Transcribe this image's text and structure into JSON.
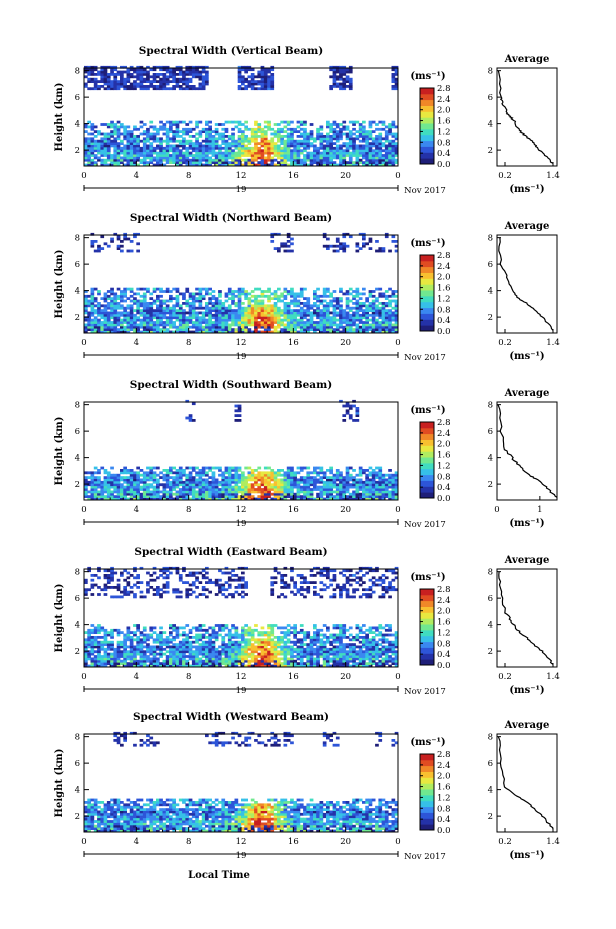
{
  "figure": {
    "xlabel_bottom": "Local Time",
    "colorbar_unit": "(ms⁻¹)",
    "colorbar_ticks": [
      "0.0",
      "0.4",
      "0.8",
      "1.2",
      "1.6",
      "2.0",
      "2.4",
      "2.8"
    ],
    "day_label": "19",
    "month_label": "Nov 2017",
    "avg_title": "Average",
    "avg_xlabel": "(ms⁻¹)",
    "colormap": [
      "#1e1e78",
      "#2432a8",
      "#2d55d8",
      "#3a88f0",
      "#36c0e8",
      "#40dcc0",
      "#70e890",
      "#b0ec60",
      "#e8e840",
      "#f8c030",
      "#f08828",
      "#e04c22",
      "#c82020"
    ]
  },
  "chart_data": [
    {
      "type": "heatmap",
      "title": "Spectral Width (Vertical Beam)",
      "ylabel": "Height (km)",
      "x_ticks": [
        "0",
        "4",
        "8",
        "12",
        "16",
        "20",
        "0"
      ],
      "xlim": [
        0,
        24
      ],
      "y_ticks": [
        "2",
        "4",
        "6",
        "8"
      ],
      "ylim": [
        0.8,
        8.2
      ],
      "colorbar_range": [
        0.0,
        2.8
      ],
      "average_profile": {
        "x_ticks": [
          "0.2",
          "1.4"
        ],
        "xlim": [
          0.0,
          1.5
        ],
        "y_ticks": [
          "2",
          "4",
          "6",
          "8"
        ],
        "ylim": [
          0.8,
          8.2
        ],
        "points": [
          [
            0.05,
            8.0
          ],
          [
            0.08,
            6.0
          ],
          [
            0.15,
            5.5
          ],
          [
            0.25,
            4.8
          ],
          [
            0.35,
            4.5
          ],
          [
            0.45,
            4.1
          ],
          [
            0.55,
            3.5
          ],
          [
            0.7,
            3.1
          ],
          [
            0.9,
            2.6
          ],
          [
            1.0,
            2.2
          ],
          [
            1.2,
            1.6
          ],
          [
            1.4,
            1.0
          ]
        ]
      }
    },
    {
      "type": "heatmap",
      "title": "Spectral Width (Northward Beam)",
      "ylabel": "Height (km)",
      "x_ticks": [
        "0",
        "4",
        "8",
        "12",
        "16",
        "20",
        "0"
      ],
      "xlim": [
        0,
        24
      ],
      "y_ticks": [
        "2",
        "4",
        "6",
        "8"
      ],
      "ylim": [
        0.8,
        8.2
      ],
      "colorbar_range": [
        0.0,
        2.8
      ],
      "average_profile": {
        "x_ticks": [
          "0.2",
          "1.4"
        ],
        "xlim": [
          0.0,
          1.5
        ],
        "y_ticks": [
          "2",
          "4",
          "6",
          "8"
        ],
        "ylim": [
          0.8,
          8.2
        ],
        "points": [
          [
            0.05,
            8.0
          ],
          [
            0.1,
            6.0
          ],
          [
            0.25,
            5.0
          ],
          [
            0.4,
            4.0
          ],
          [
            0.55,
            3.4
          ],
          [
            0.8,
            2.9
          ],
          [
            1.0,
            2.4
          ],
          [
            1.2,
            1.8
          ],
          [
            1.4,
            1.0
          ]
        ]
      }
    },
    {
      "type": "heatmap",
      "title": "Spectral Width (Southward Beam)",
      "ylabel": "Height (km)",
      "x_ticks": [
        "0",
        "4",
        "8",
        "12",
        "16",
        "20",
        "0"
      ],
      "xlim": [
        0,
        24
      ],
      "y_ticks": [
        "2",
        "4",
        "6",
        "8"
      ],
      "ylim": [
        0.8,
        8.2
      ],
      "colorbar_range": [
        0.0,
        2.8
      ],
      "average_profile": {
        "x_ticks": [
          "0",
          "1"
        ],
        "xlim": [
          0.0,
          1.4
        ],
        "y_ticks": [
          "2",
          "4",
          "6",
          "8"
        ],
        "ylim": [
          0.8,
          8.2
        ],
        "points": [
          [
            0.05,
            8.0
          ],
          [
            0.1,
            6.0
          ],
          [
            0.2,
            4.6
          ],
          [
            0.35,
            4.0
          ],
          [
            0.55,
            3.3
          ],
          [
            0.8,
            2.6
          ],
          [
            1.0,
            2.2
          ],
          [
            1.2,
            1.6
          ],
          [
            1.4,
            1.0
          ]
        ]
      }
    },
    {
      "type": "heatmap",
      "title": "Spectral Width (Eastward Beam)",
      "ylabel": "Height (km)",
      "x_ticks": [
        "0",
        "4",
        "8",
        "12",
        "16",
        "20",
        "0"
      ],
      "xlim": [
        0,
        24
      ],
      "y_ticks": [
        "2",
        "4",
        "6",
        "8"
      ],
      "ylim": [
        0.8,
        8.2
      ],
      "colorbar_range": [
        0.0,
        2.8
      ],
      "average_profile": {
        "x_ticks": [
          "0.2",
          "1.4"
        ],
        "xlim": [
          0.0,
          1.5
        ],
        "y_ticks": [
          "2",
          "4",
          "6",
          "8"
        ],
        "ylim": [
          0.8,
          8.2
        ],
        "points": [
          [
            0.05,
            8.0
          ],
          [
            0.1,
            6.5
          ],
          [
            0.2,
            5.0
          ],
          [
            0.35,
            4.3
          ],
          [
            0.5,
            3.6
          ],
          [
            0.75,
            3.0
          ],
          [
            0.95,
            2.4
          ],
          [
            1.2,
            1.8
          ],
          [
            1.4,
            1.0
          ]
        ]
      }
    },
    {
      "type": "heatmap",
      "title": "Spectral Width (Westward Beam)",
      "ylabel": "Height (km)",
      "x_ticks": [
        "0",
        "4",
        "8",
        "12",
        "16",
        "20",
        "0"
      ],
      "xlim": [
        0,
        24
      ],
      "y_ticks": [
        "2",
        "4",
        "6",
        "8"
      ],
      "ylim": [
        0.8,
        8.2
      ],
      "colorbar_range": [
        0.0,
        2.8
      ],
      "average_profile": {
        "x_ticks": [
          "0.2",
          "1.4"
        ],
        "xlim": [
          0.0,
          1.5
        ],
        "y_ticks": [
          "2",
          "4",
          "6",
          "8"
        ],
        "ylim": [
          0.8,
          8.2
        ],
        "points": [
          [
            0.05,
            8.0
          ],
          [
            0.08,
            6.0
          ],
          [
            0.2,
            4.2
          ],
          [
            0.5,
            3.5
          ],
          [
            0.8,
            2.9
          ],
          [
            1.0,
            2.4
          ],
          [
            1.2,
            1.8
          ],
          [
            1.4,
            1.0
          ]
        ]
      }
    }
  ]
}
